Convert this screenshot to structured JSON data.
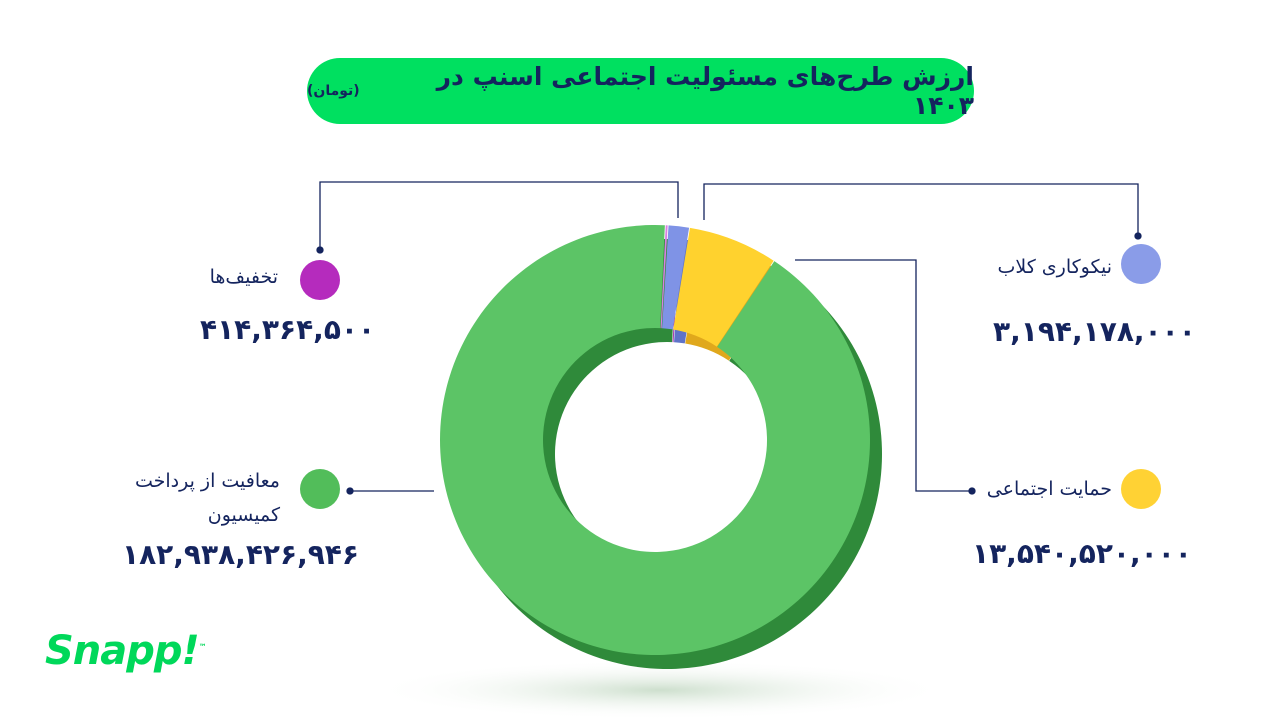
{
  "title": {
    "main": "ارزش طرح‌های مسئولیت اجتماعی اسنپ در ۱۴۰۳",
    "unit": "(تومان)"
  },
  "logo": {
    "text": "Snapp!",
    "tm": "™"
  },
  "chart_data": {
    "type": "pie",
    "variant": "donut-3d",
    "title": "ارزش طرح‌های مسئولیت اجتماعی اسنپ در ۱۴۰۳ (تومان)",
    "slices": [
      {
        "label": "تخفیف‌ها",
        "value": 414364500,
        "display": "۴۱۴,۳۶۴,۵۰۰",
        "color": "#b52bbd",
        "slice_color": "#d97fe0"
      },
      {
        "label": "نیکوکاری کلاب",
        "value": 3194178000,
        "display": "۳,۱۹۴,۱۷۸,۰۰۰",
        "color": "#8a9ce8",
        "slice_color": "#7f93e6"
      },
      {
        "label": "حمایت اجتماعی",
        "value": 13540520000,
        "display": "۱۳,۵۴۰,۵۲۰,۰۰۰",
        "color": "#ffd234",
        "slice_color": "#ffd22e"
      },
      {
        "label": "معافیت از پرداخت کمیسیون",
        "value": 182938426946,
        "display": "۱۸۲,۹۳۸,۴۲۶,۹۴۶",
        "color": "#52bd5a",
        "slice_color": "#5cc466"
      }
    ]
  }
}
